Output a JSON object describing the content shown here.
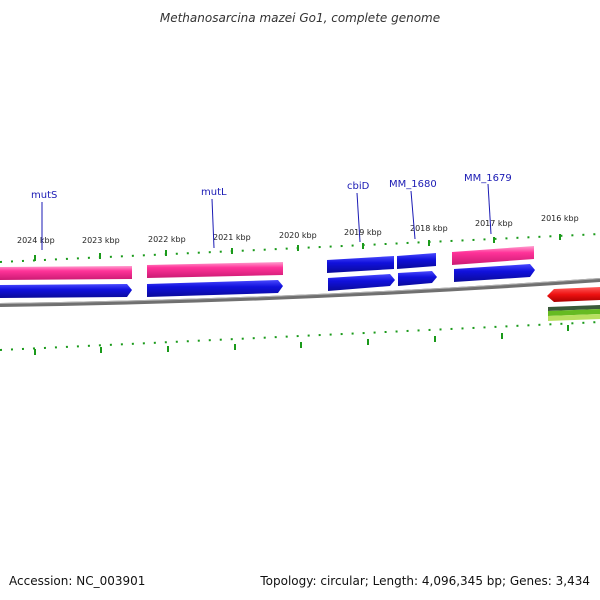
{
  "title": "Methanosarcina mazei Go1, complete genome",
  "accession": "Accession: NC_003901",
  "summary": "Topology: circular; Length: 4,096,345 bp; Genes: 3,434",
  "tick_labels": [
    "2024 kbp",
    "2023 kbp",
    "2022 kbp",
    "2021 kbp",
    "2020 kbp",
    "2019 kbp",
    "2018 kbp",
    "2017 kbp",
    "2016 kbp"
  ],
  "gene_labels": [
    "mutS",
    "mutL",
    "cbiD",
    "MM_1680",
    "MM_1679"
  ],
  "colors": {
    "forward_cds": "#ff3399",
    "reverse_cds": "#1111dd",
    "backbone": "#808080",
    "ticks": "#1a9a1a",
    "gene_label": "#1a1ab4",
    "red_feature": "#ee1111"
  }
}
